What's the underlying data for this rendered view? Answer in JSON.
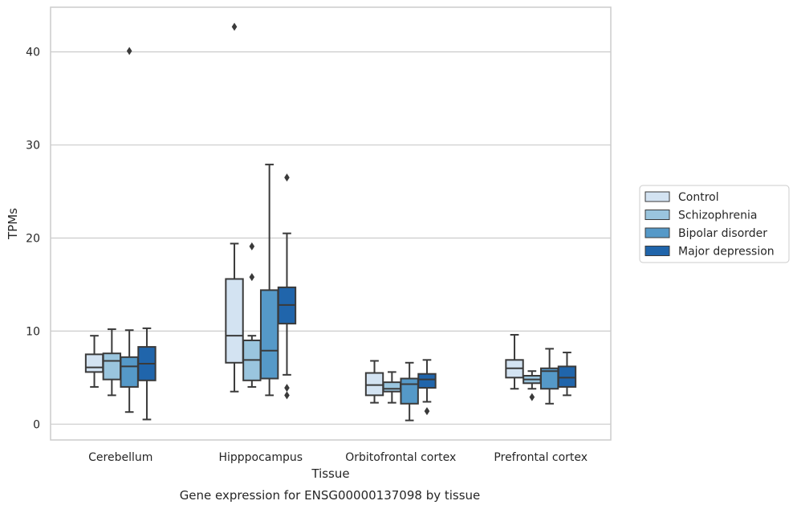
{
  "chart_data": {
    "type": "box",
    "ylabel": "TPMs",
    "xlabel": "Tissue",
    "caption": "Gene expression for ENSG00000137098 by tissue",
    "ylim": [
      -1.7,
      44.8
    ],
    "yticks": [
      0,
      10,
      20,
      30,
      40
    ],
    "ytick_labels": [
      "0",
      "10",
      "20",
      "30",
      "40"
    ],
    "grid": "horizontal",
    "legend_position": "right",
    "categories": [
      "Cerebellum",
      "Hipppocampus",
      "Orbitofrontal cortex",
      "Prefrontal cortex"
    ],
    "series": [
      {
        "name": "Control",
        "color": "#d3e3f2",
        "boxes": [
          {
            "min": 4.0,
            "q1": 5.6,
            "median": 6.1,
            "q3": 7.5,
            "max": 9.5,
            "outliers": []
          },
          {
            "min": 3.5,
            "q1": 6.6,
            "median": 9.5,
            "q3": 15.6,
            "max": 19.4,
            "outliers": [
              42.7
            ]
          },
          {
            "min": 2.3,
            "q1": 3.1,
            "median": 4.2,
            "q3": 5.5,
            "max": 6.8,
            "outliers": []
          },
          {
            "min": 3.8,
            "q1": 5.0,
            "median": 6.0,
            "q3": 6.9,
            "max": 9.6,
            "outliers": []
          }
        ]
      },
      {
        "name": "Schizophrenia",
        "color": "#9ac5de",
        "boxes": [
          {
            "min": 3.1,
            "q1": 4.8,
            "median": 6.8,
            "q3": 7.6,
            "max": 10.2,
            "outliers": []
          },
          {
            "min": 4.0,
            "q1": 4.7,
            "median": 6.9,
            "q3": 9.0,
            "max": 9.5,
            "outliers": [
              15.8,
              19.1
            ]
          },
          {
            "min": 2.3,
            "q1": 3.5,
            "median": 3.8,
            "q3": 4.5,
            "max": 5.6,
            "outliers": []
          },
          {
            "min": 3.8,
            "q1": 4.4,
            "median": 4.8,
            "q3": 5.2,
            "max": 5.7,
            "outliers": [
              2.9
            ]
          }
        ]
      },
      {
        "name": "Bipolar disorder",
        "color": "#5599c8",
        "boxes": [
          {
            "min": 1.3,
            "q1": 4.0,
            "median": 6.2,
            "q3": 7.2,
            "max": 10.1,
            "outliers": [
              40.1
            ]
          },
          {
            "min": 3.1,
            "q1": 4.9,
            "median": 7.9,
            "q3": 14.4,
            "max": 27.9,
            "outliers": []
          },
          {
            "min": 0.4,
            "q1": 2.2,
            "median": 4.3,
            "q3": 4.9,
            "max": 6.6,
            "outliers": []
          },
          {
            "min": 2.2,
            "q1": 3.8,
            "median": 5.7,
            "q3": 6.0,
            "max": 8.1,
            "outliers": []
          }
        ]
      },
      {
        "name": "Major depression",
        "color": "#2065ab",
        "boxes": [
          {
            "min": 0.5,
            "q1": 4.7,
            "median": 6.5,
            "q3": 8.3,
            "max": 10.3,
            "outliers": []
          },
          {
            "min": 5.3,
            "q1": 10.8,
            "median": 12.8,
            "q3": 14.7,
            "max": 20.5,
            "outliers": [
              3.1,
              3.9,
              26.5
            ]
          },
          {
            "min": 2.4,
            "q1": 3.9,
            "median": 4.8,
            "q3": 5.4,
            "max": 6.9,
            "outliers": [
              1.4
            ]
          },
          {
            "min": 3.1,
            "q1": 4.0,
            "median": 5.0,
            "q3": 6.2,
            "max": 7.7,
            "outliers": []
          }
        ]
      }
    ]
  }
}
